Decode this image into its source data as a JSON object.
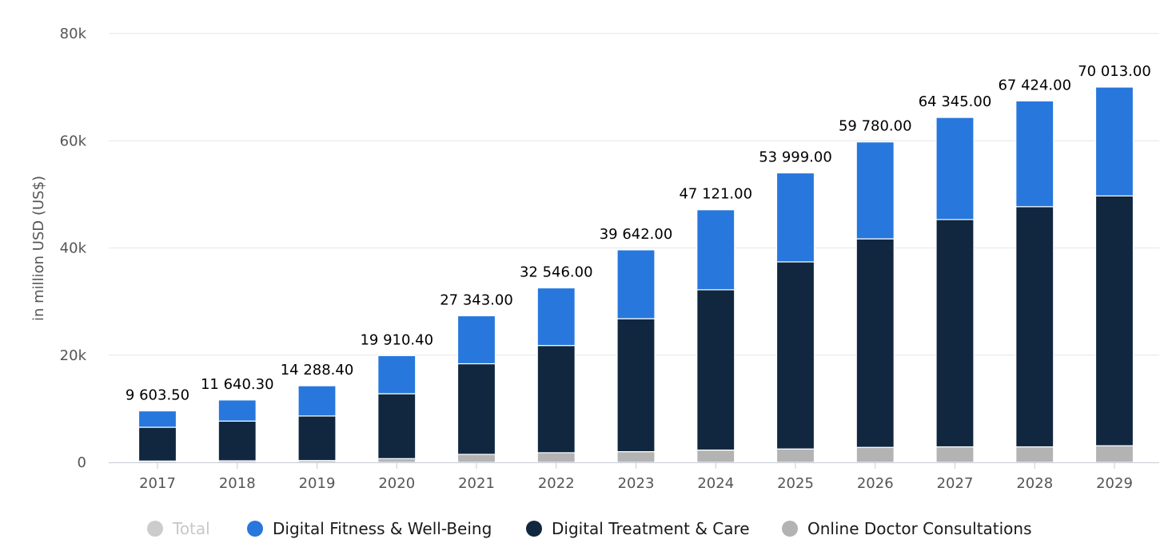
{
  "chart_data": {
    "type": "stacked-bar",
    "categories": [
      "2017",
      "2018",
      "2019",
      "2020",
      "2021",
      "2022",
      "2023",
      "2024",
      "2025",
      "2026",
      "2027",
      "2028",
      "2029"
    ],
    "series": [
      {
        "name": "Online Doctor Consultations",
        "color": "#b3b3b3",
        "values": [
          250,
          300,
          350,
          700,
          1500,
          1800,
          2000,
          2300,
          2500,
          2800,
          2900,
          2900,
          3100
        ]
      },
      {
        "name": "Digital Treatment & Care",
        "color": "#10273f",
        "values": [
          6300,
          7400,
          8300,
          12100,
          16900,
          20000,
          24800,
          29900,
          34900,
          38900,
          42400,
          44800,
          46600
        ]
      },
      {
        "name": "Digital Fitness & Well-Being",
        "color": "#2777dd",
        "values": [
          3053.5,
          3940.3,
          5638.4,
          7110.4,
          8943.0,
          10746.0,
          12842.0,
          14921.0,
          16599.0,
          18080.0,
          19045.0,
          19724.0,
          20313.0
        ]
      }
    ],
    "totals": [
      "9 603.50",
      "11 640.30",
      "14 288.40",
      "19 910.40",
      "27 343.00",
      "32 546.00",
      "39 642.00",
      "47 121.00",
      "53 999.00",
      "59 780.00",
      "64 345.00",
      "67 424.00",
      "70 013.00"
    ],
    "total_values": [
      9603.5,
      11640.3,
      14288.4,
      19910.4,
      27343.0,
      32546.0,
      39642.0,
      47121.0,
      53999.0,
      59780.0,
      64345.0,
      67424.0,
      70013.0
    ],
    "yticks": [
      {
        "value": 0,
        "label": "0"
      },
      {
        "value": 20000,
        "label": "20k"
      },
      {
        "value": 40000,
        "label": "40k"
      },
      {
        "value": 60000,
        "label": "60k"
      },
      {
        "value": 80000,
        "label": "80k"
      }
    ],
    "ylim": [
      0,
      80000
    ],
    "ylabel": "in million USD (US$)",
    "xlabel": "",
    "grid": true,
    "legend_position": "bottom"
  },
  "legend": {
    "items": [
      {
        "label": "Total",
        "color": "#cccccc",
        "disabled": true
      },
      {
        "label": "Digital Fitness & Well-Being",
        "color": "#2777dd",
        "disabled": false
      },
      {
        "label": "Digital Treatment & Care",
        "color": "#10273f",
        "disabled": false
      },
      {
        "label": "Online Doctor Consultations",
        "color": "#b3b3b3",
        "disabled": false
      }
    ]
  }
}
